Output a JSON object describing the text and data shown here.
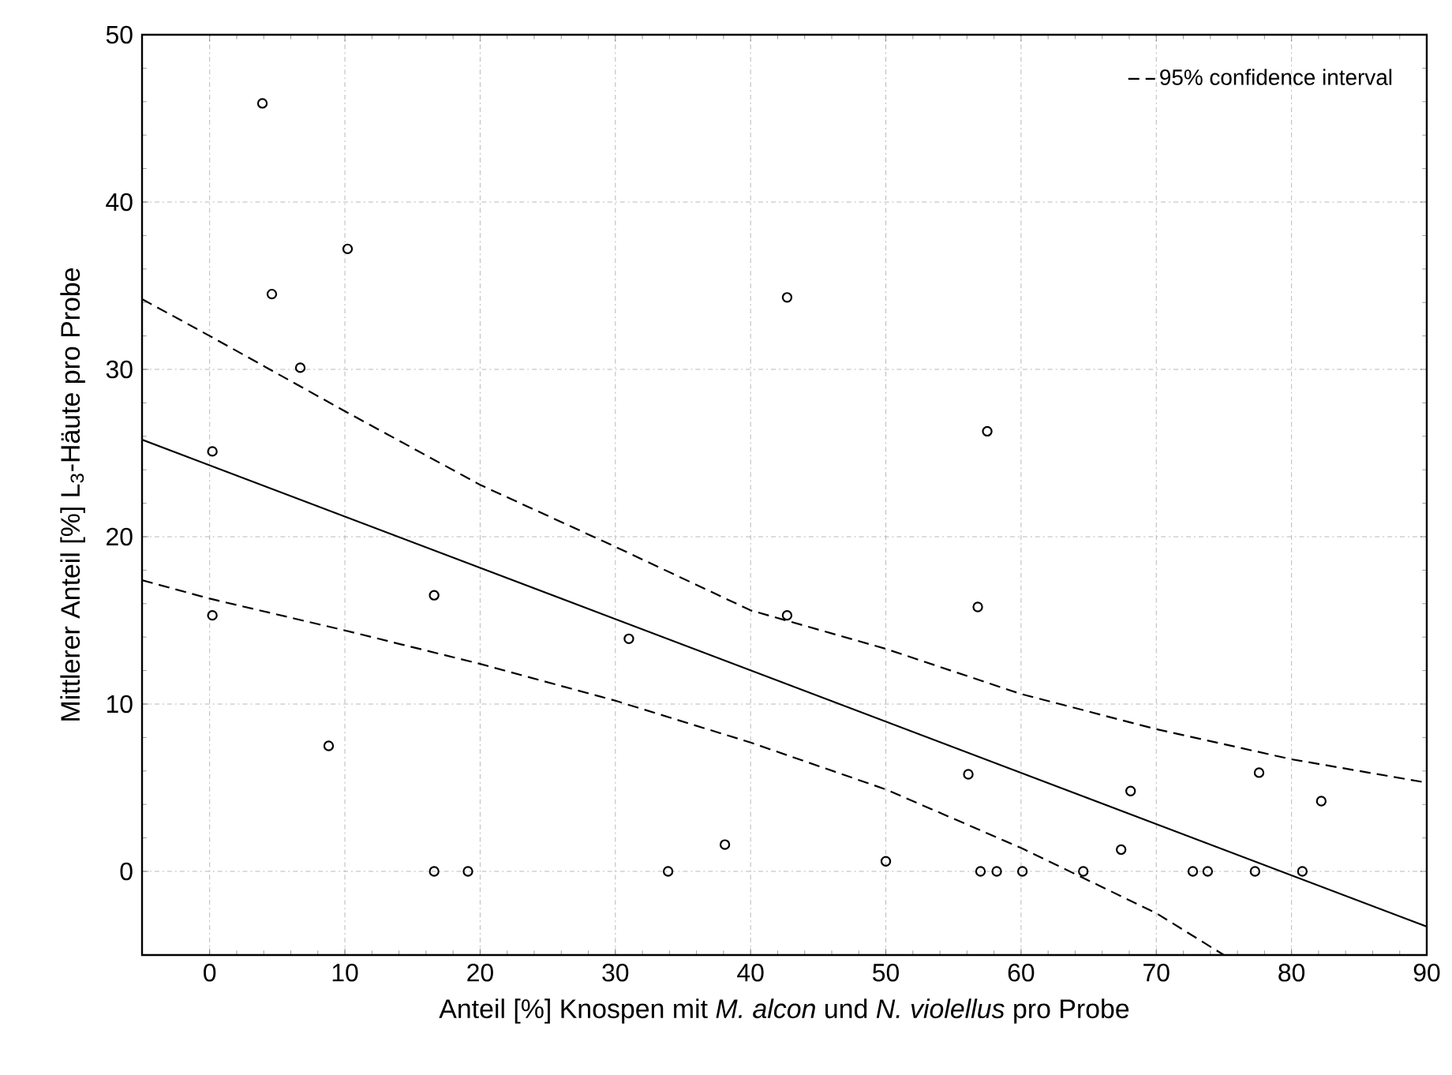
{
  "chart_data": {
    "type": "scatter",
    "xlabel": "Anteil [%] Knospen mit *M. alcon* und *N. violellus* pro Probe",
    "ylabel": "Mittlerer Anteil [%] L$_{3}$-Häute pro Probe",
    "xlim": [
      -5,
      90
    ],
    "ylim": [
      -5,
      50
    ],
    "xticks": [
      0,
      10,
      20,
      30,
      40,
      50,
      60,
      70,
      80,
      90
    ],
    "yticks": [
      0,
      10,
      20,
      30,
      40,
      50
    ],
    "grid": true,
    "legend": "top right",
    "series": [
      {
        "type": "scatter",
        "marker": "circle",
        "color": "#000000",
        "x": [
          3.9,
          10.2,
          4.6,
          6.7,
          42.7,
          0.2,
          16.6,
          0.2,
          31.0,
          42.7,
          8.8,
          38.1,
          16.6,
          19.1,
          33.9,
          57.5,
          56.8,
          56.1,
          68.1,
          67.4,
          77.6,
          82.2,
          50.0,
          57.0,
          58.2,
          60.1,
          64.6,
          72.7,
          73.8,
          77.3,
          80.8
        ],
        "values": [
          45.9,
          37.2,
          34.5,
          30.1,
          34.3,
          25.1,
          16.5,
          15.3,
          13.9,
          15.3,
          7.5,
          1.6,
          0,
          0,
          0,
          26.3,
          15.8,
          5.8,
          4.8,
          1.3,
          5.9,
          4.2,
          0.6,
          0,
          0,
          0,
          0,
          0,
          0,
          0,
          0
        ]
      },
      {
        "type": "line",
        "line_style": "solid",
        "color": "#000000",
        "x": [
          -5,
          90
        ],
        "values": [
          25.8,
          -3.3
        ]
      },
      {
        "type": "line",
        "line_style": "dashed",
        "name": "95% confidence interval",
        "color": "#000000",
        "x": [
          -5,
          0,
          10,
          20,
          30,
          40,
          50,
          60,
          70,
          80,
          90
        ],
        "values": [
          34.2,
          32.0,
          27.5,
          23.1,
          19.4,
          15.6,
          13.3,
          10.6,
          8.5,
          6.7,
          5.3
        ]
      },
      {
        "type": "line",
        "line_style": "dashed",
        "color": "#000000",
        "x": [
          -5,
          0,
          10,
          20,
          30,
          40,
          50,
          60,
          70,
          75
        ],
        "values": [
          17.4,
          16.3,
          14.4,
          12.4,
          10.2,
          7.7,
          4.9,
          1.4,
          -2.5,
          -5
        ]
      }
    ]
  }
}
